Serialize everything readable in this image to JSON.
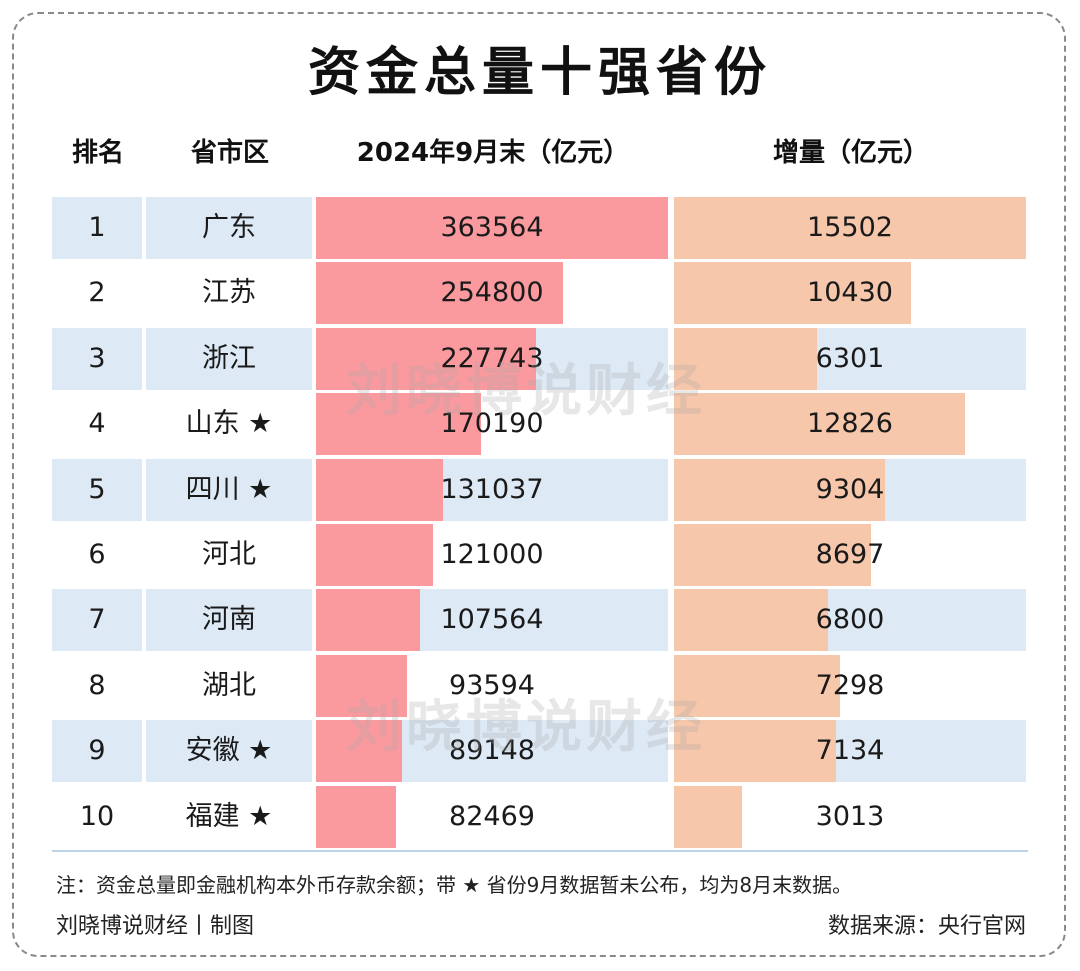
{
  "title": "资金总量十强省份",
  "headers": {
    "rank": "排名",
    "region": "省市区",
    "stock": "2024年9月末（亿元）",
    "increment": "增量（亿元）"
  },
  "watermark": "刘晓博说财经",
  "footnote": "注：资金总量即金融机构本外币存款余额；带 ★ 省份9月数据暂未公布，均为8月末数据。",
  "credit": "刘晓博说财经丨制图",
  "source": "数据来源：央行官网",
  "colors": {
    "stock_bar": "#fb9a9e",
    "increment_bar": "#f7c7ab",
    "row_band": "#dde9f5"
  },
  "chart_data": {
    "type": "table",
    "columns": [
      "排名",
      "省市区",
      "2024年9月末（亿元）",
      "增量（亿元）"
    ],
    "rows": [
      {
        "rank": "1",
        "region": "广东",
        "stock": 363564,
        "increment": 15502
      },
      {
        "rank": "2",
        "region": "江苏",
        "stock": 254800,
        "increment": 10430
      },
      {
        "rank": "3",
        "region": "浙江",
        "stock": 227743,
        "increment": 6301
      },
      {
        "rank": "4",
        "region": "山东 ★",
        "stock": 170190,
        "increment": 12826
      },
      {
        "rank": "5",
        "region": "四川 ★",
        "stock": 131037,
        "increment": 9304
      },
      {
        "rank": "6",
        "region": "河北",
        "stock": 121000,
        "increment": 8697
      },
      {
        "rank": "7",
        "region": "河南",
        "stock": 107564,
        "increment": 6800
      },
      {
        "rank": "8",
        "region": "湖北",
        "stock": 93594,
        "increment": 7298
      },
      {
        "rank": "9",
        "region": "安徽 ★",
        "stock": 89148,
        "increment": 7134
      },
      {
        "rank": "10",
        "region": "福建 ★",
        "stock": 82469,
        "increment": 3013
      }
    ]
  }
}
